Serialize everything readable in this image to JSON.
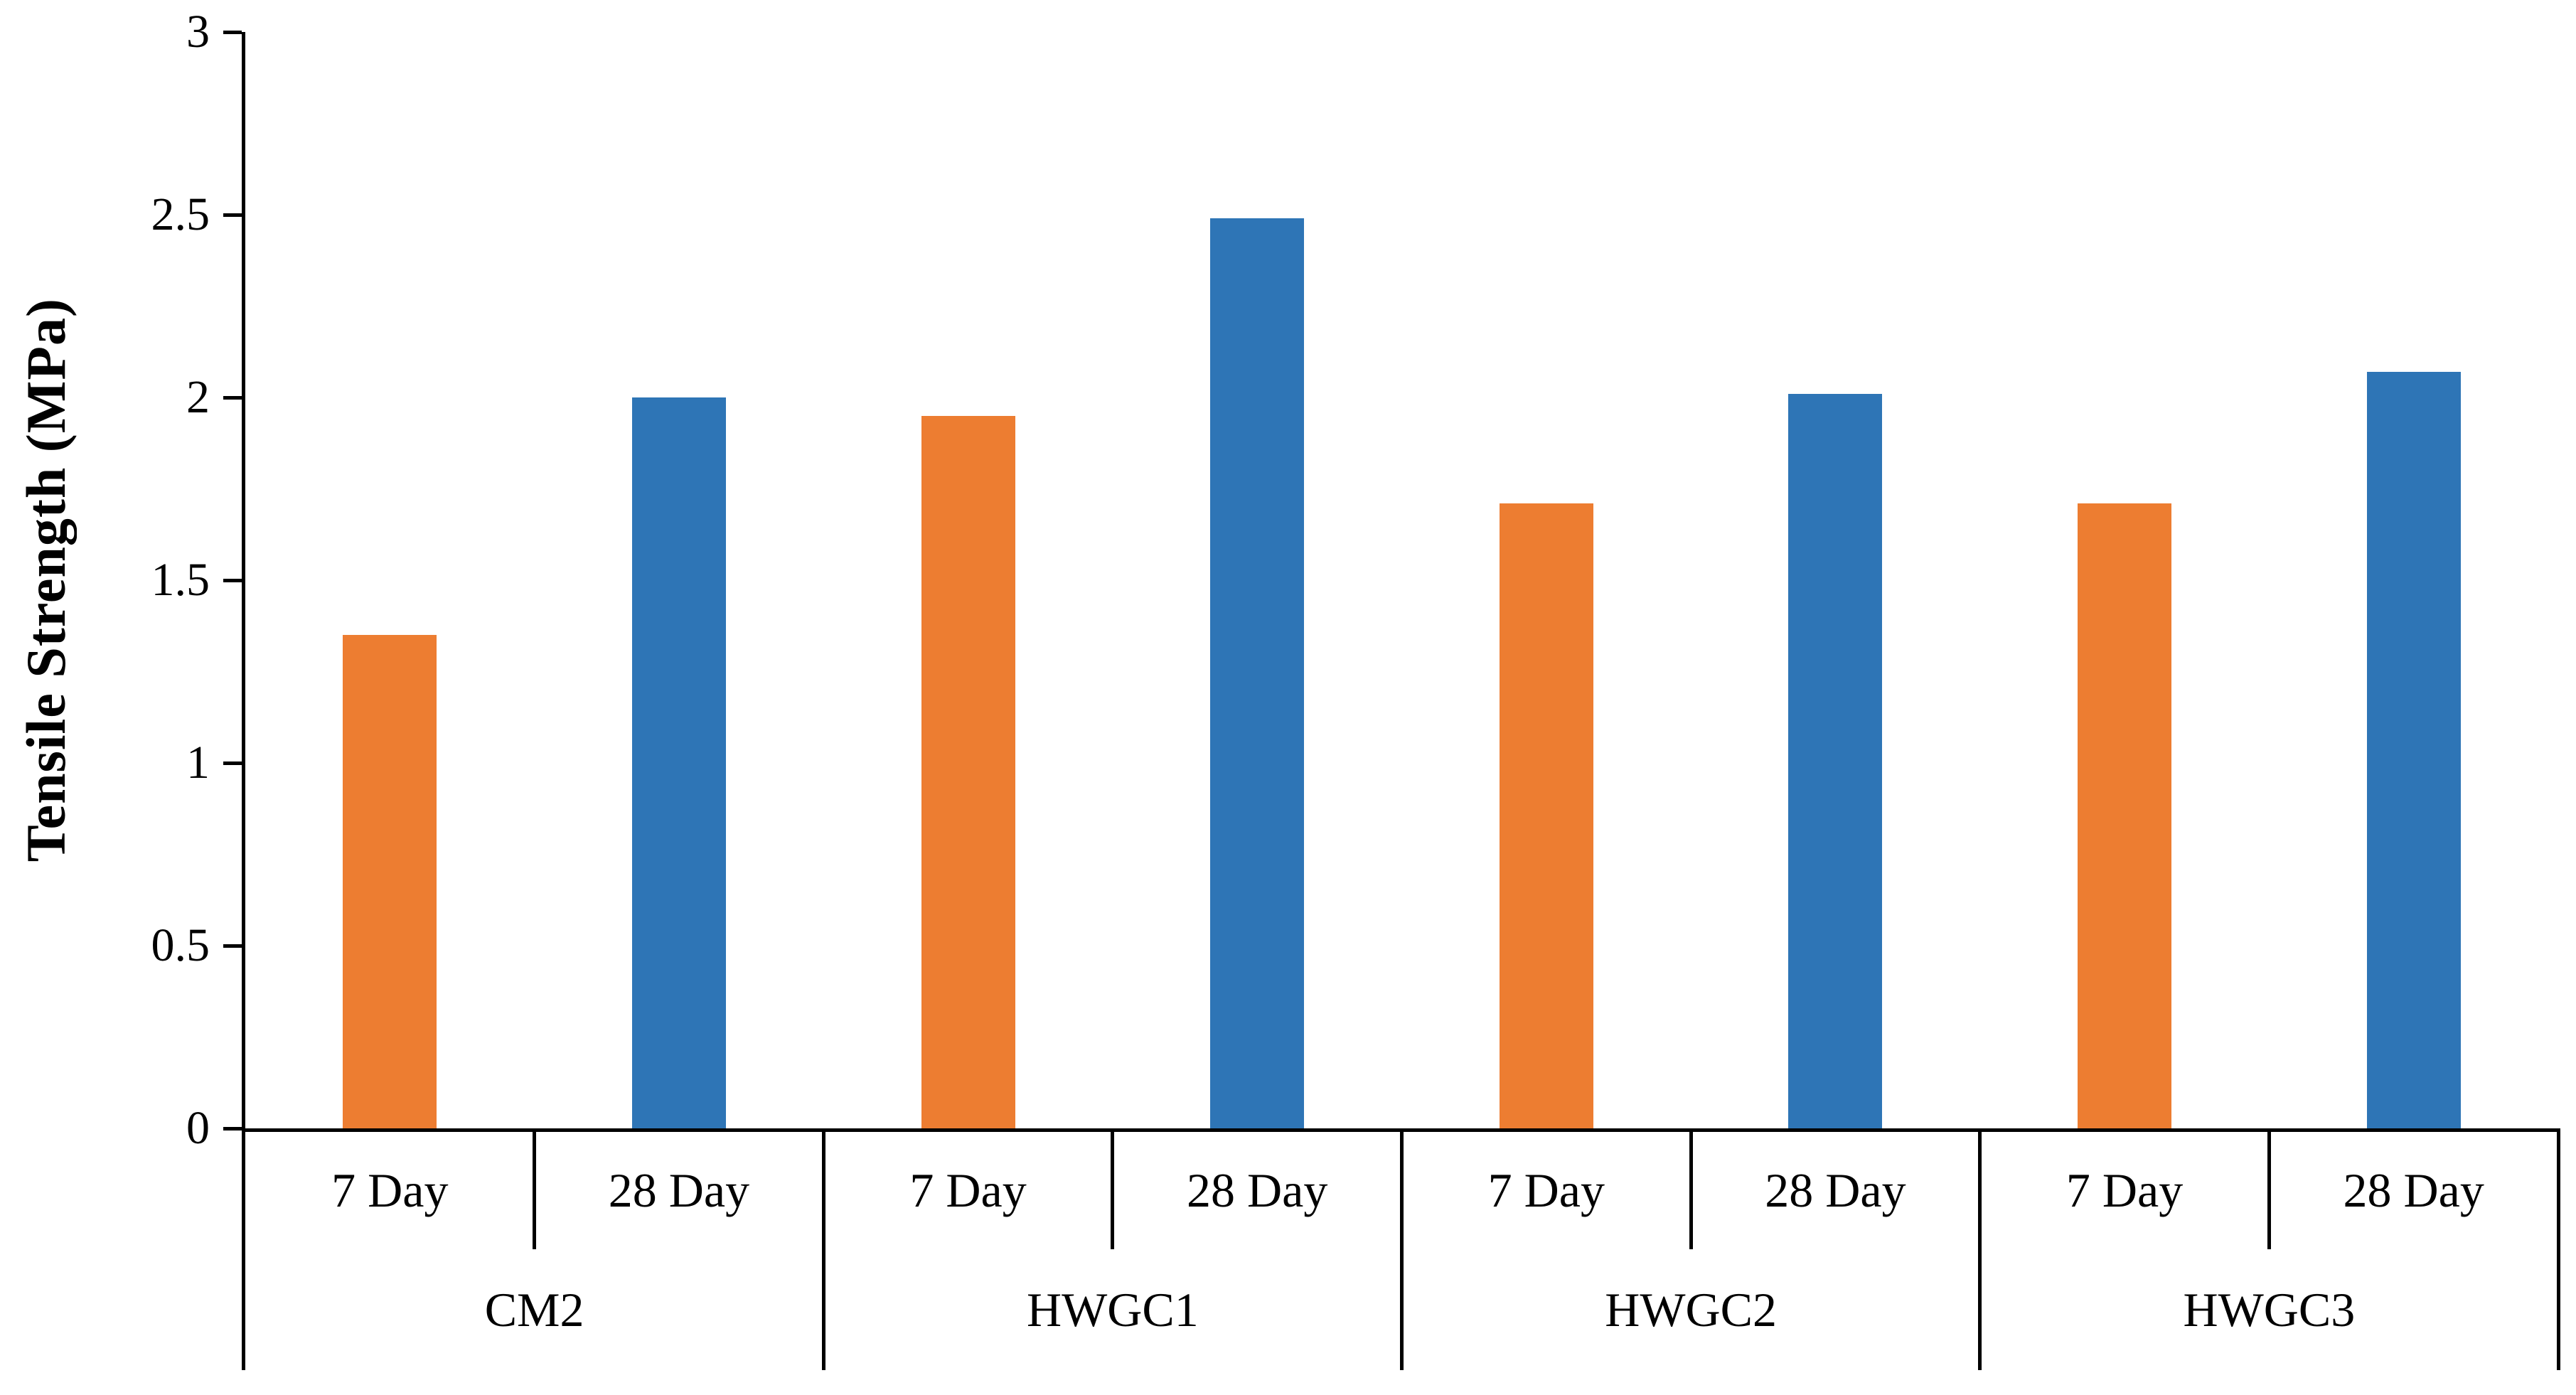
{
  "chart_data": {
    "type": "bar",
    "title": "",
    "ylabel": "Tensile Strength (MPa)",
    "xlabel": "",
    "ylim": [
      0,
      3
    ],
    "yticks": [
      0,
      0.5,
      1,
      1.5,
      2,
      2.5,
      3
    ],
    "ytick_labels": [
      "0",
      "0.5",
      "1",
      "1.5",
      "2",
      "2.5",
      "3"
    ],
    "grid": "off",
    "legend": "none",
    "groups": [
      "CM2",
      "HWGC1",
      "HWGC2",
      "HWGC3"
    ],
    "categories": [
      "7 Day",
      "28 Day"
    ],
    "series": [
      {
        "name": "7 Day",
        "color": "#ED7D31",
        "values": [
          1.35,
          1.95,
          1.71,
          1.71
        ]
      },
      {
        "name": "28 Day",
        "color": "#2E75B6",
        "values": [
          2.0,
          2.49,
          2.01,
          2.07
        ]
      }
    ],
    "colors": {
      "seven_day": "#ED7D31",
      "twenty_eight_day": "#2E75B6",
      "axis": "#000000"
    }
  }
}
